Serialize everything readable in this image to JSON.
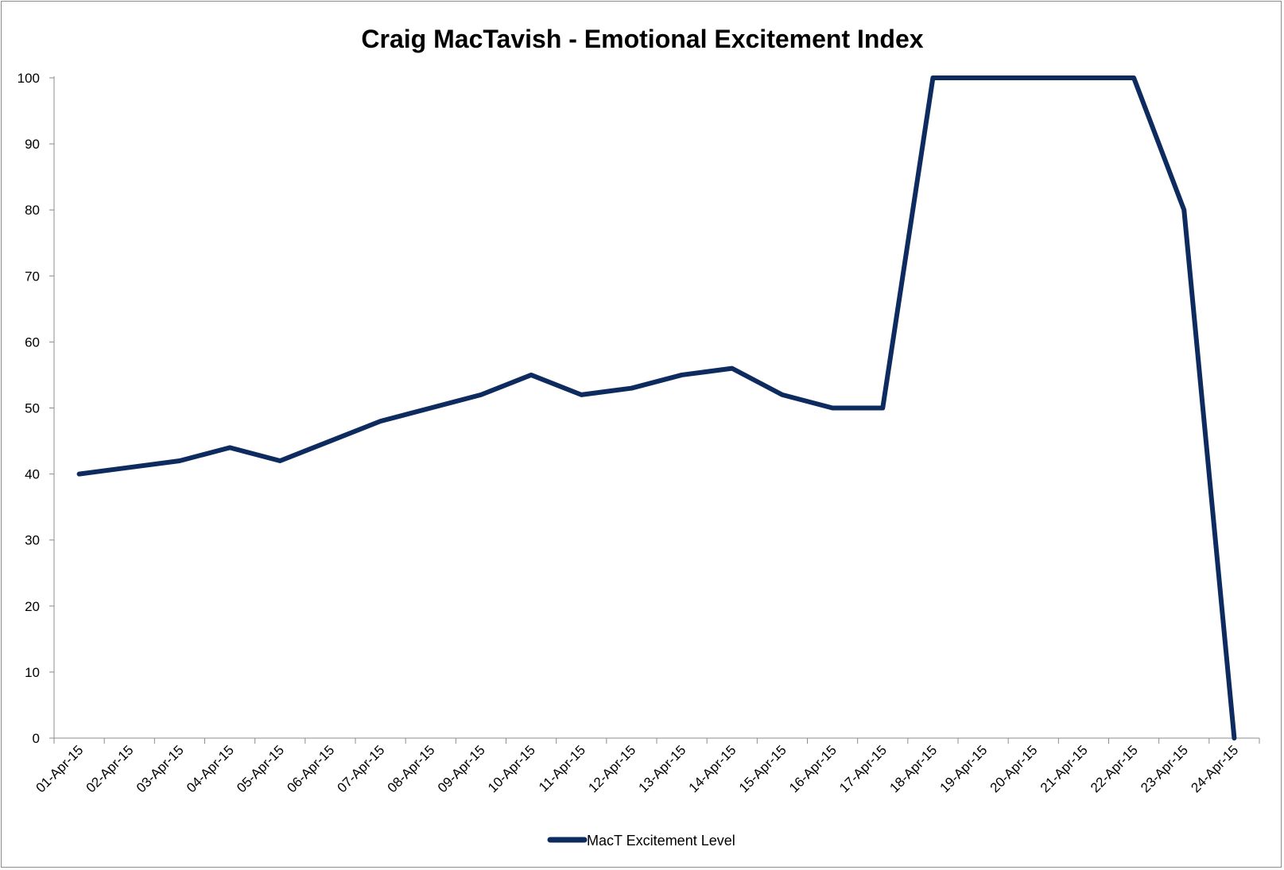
{
  "chart_data": {
    "type": "line",
    "title": "Craig MacTavish - Emotional Excitement Index",
    "xlabel": "",
    "ylabel": "",
    "ylim": [
      0,
      100
    ],
    "yticks": [
      "0",
      "10",
      "20",
      "30",
      "40",
      "50",
      "60",
      "70",
      "80",
      "90",
      "100"
    ],
    "grid": false,
    "legend_position": "bottom",
    "categories": [
      "01-Apr-15",
      "02-Apr-15",
      "03-Apr-15",
      "04-Apr-15",
      "05-Apr-15",
      "06-Apr-15",
      "07-Apr-15",
      "08-Apr-15",
      "09-Apr-15",
      "10-Apr-15",
      "11-Apr-15",
      "12-Apr-15",
      "13-Apr-15",
      "14-Apr-15",
      "15-Apr-15",
      "16-Apr-15",
      "17-Apr-15",
      "18-Apr-15",
      "19-Apr-15",
      "20-Apr-15",
      "21-Apr-15",
      "22-Apr-15",
      "23-Apr-15",
      "24-Apr-15"
    ],
    "series": [
      {
        "name": "MacT Excitement Level",
        "color": "#0d2b5e",
        "values": [
          40,
          41,
          42,
          44,
          42,
          45,
          48,
          50,
          52,
          55,
          52,
          53,
          55,
          56,
          52,
          50,
          50,
          100,
          100,
          100,
          100,
          100,
          80,
          0
        ]
      }
    ]
  }
}
